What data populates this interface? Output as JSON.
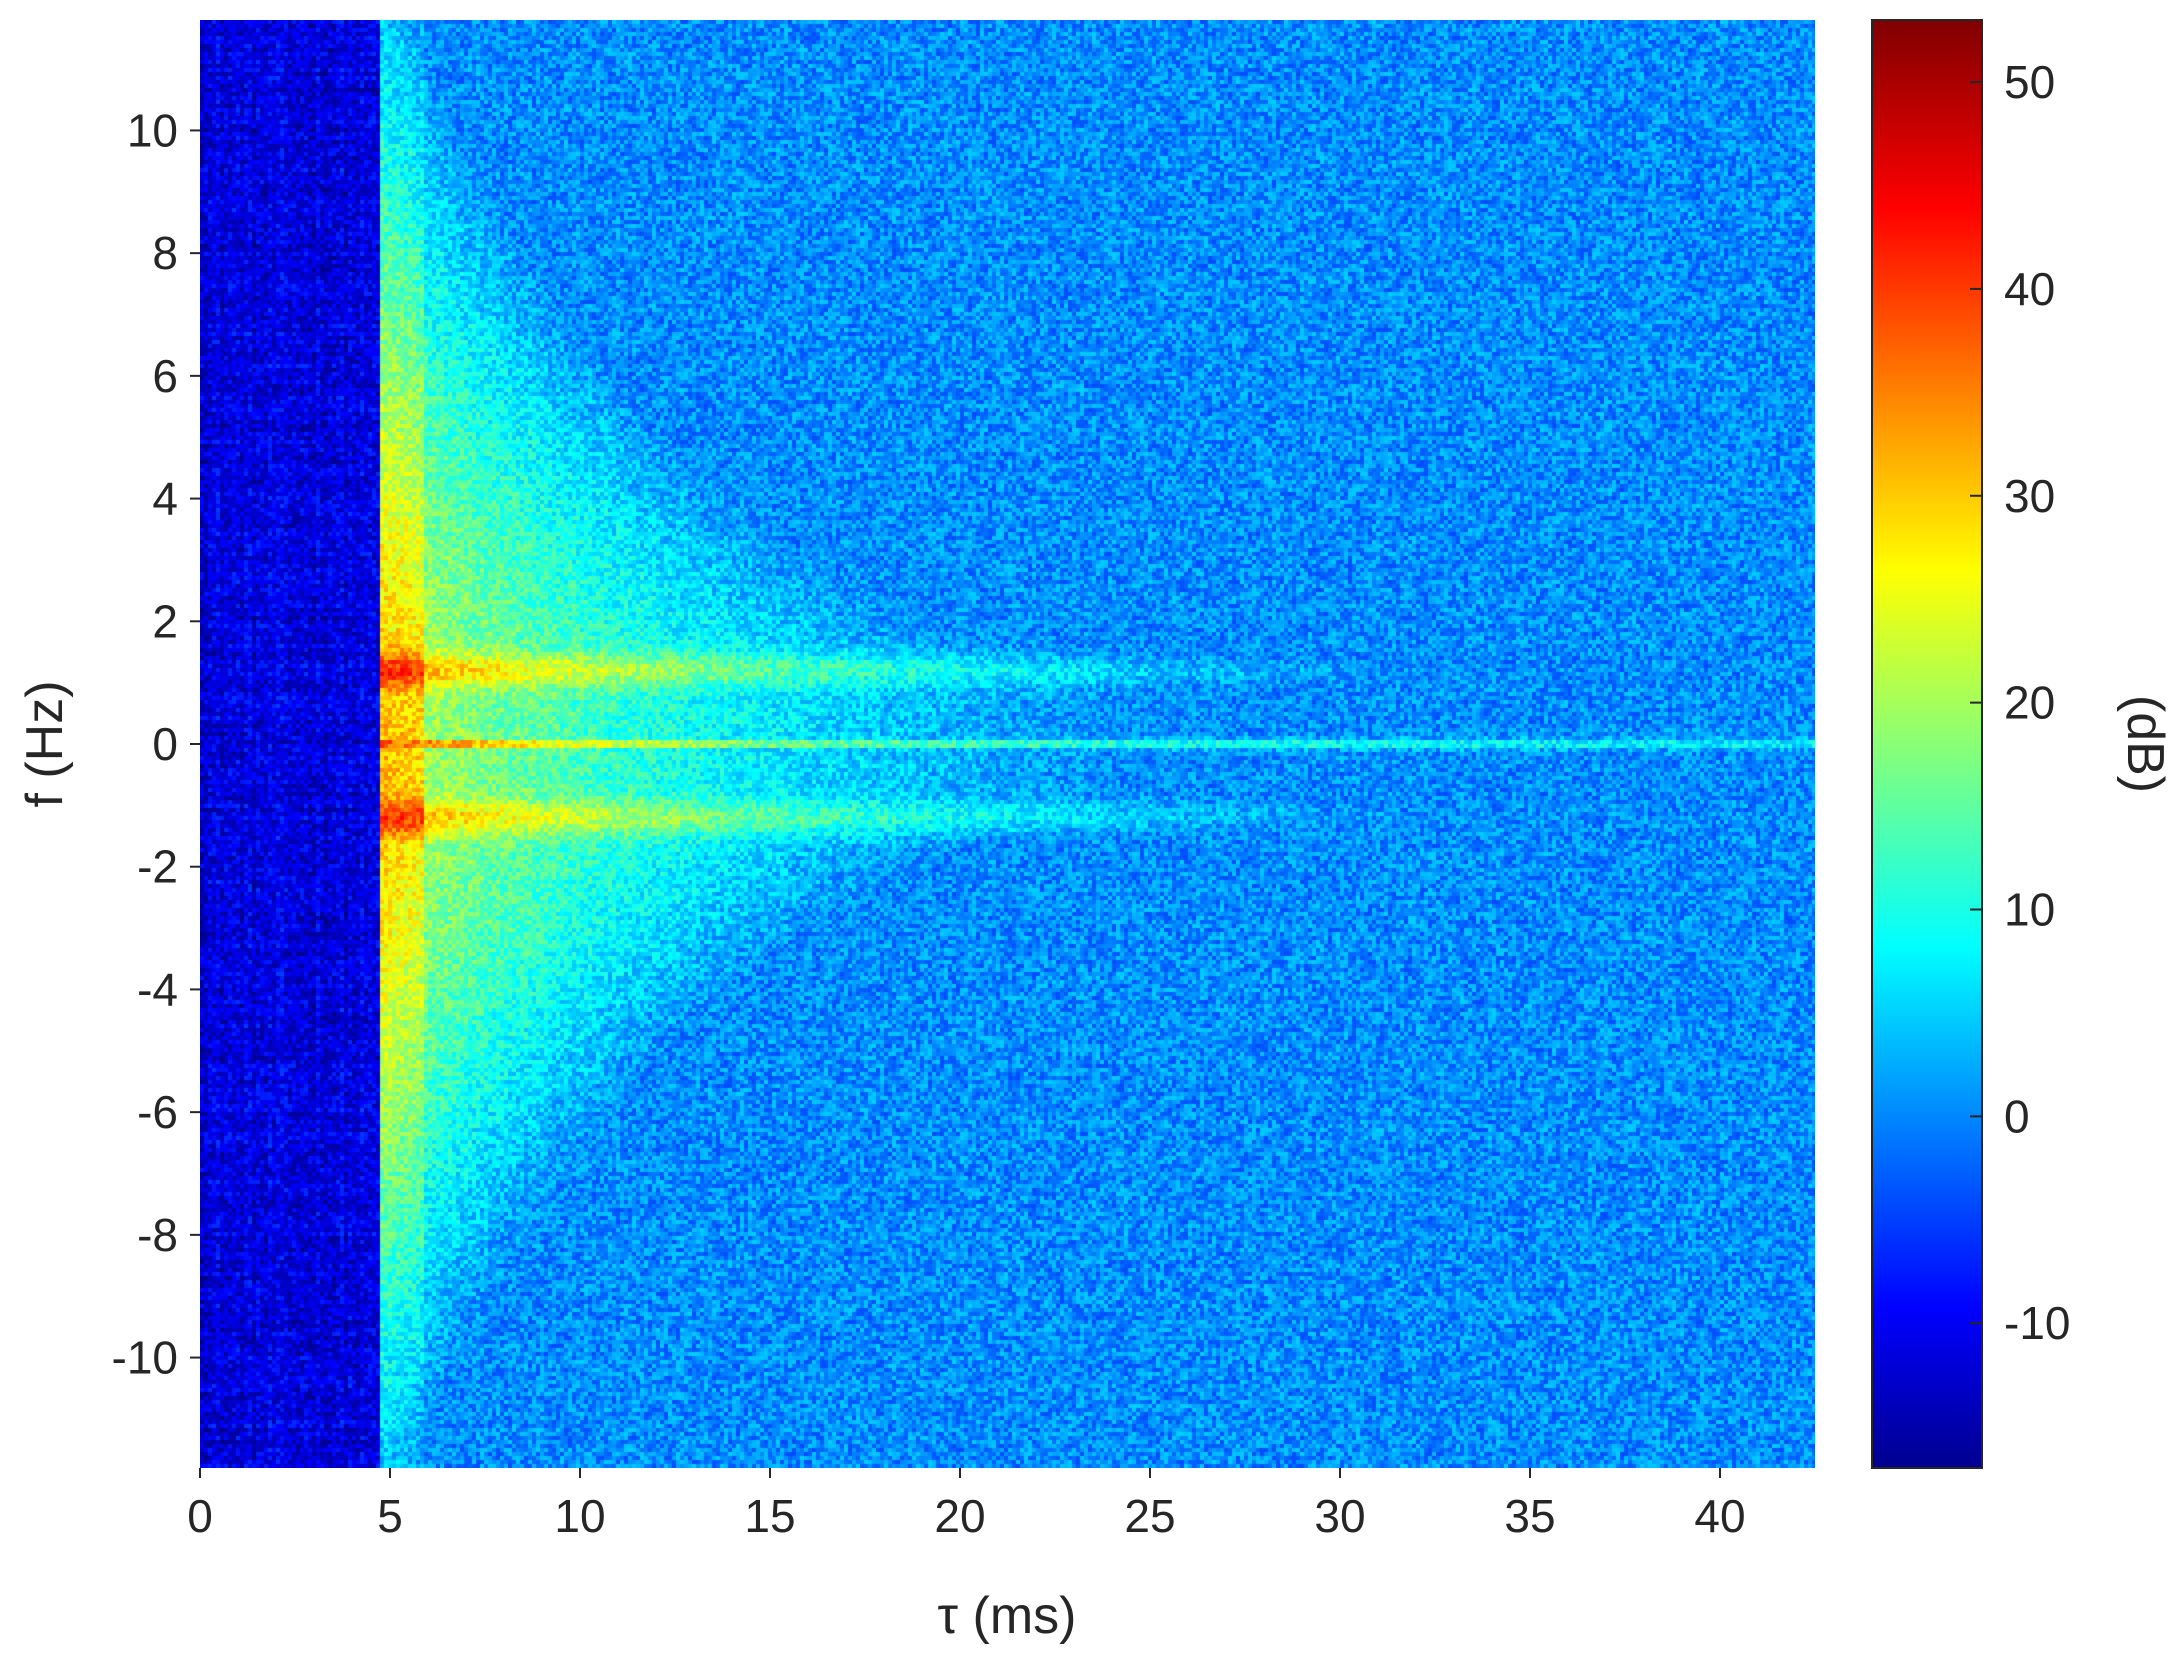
{
  "chart_data": {
    "type": "heatmap",
    "title": "",
    "xlabel": "τ (ms)",
    "ylabel": "f (Hz)",
    "colorbar_label": "(dB)",
    "colormap": "jet",
    "xlim": [
      0,
      42.5
    ],
    "ylim": [
      -11.8,
      11.8
    ],
    "clim": [
      -17,
      53
    ],
    "x_ticks": [
      0,
      5,
      10,
      15,
      20,
      25,
      30,
      35,
      40
    ],
    "x_tick_labels": [
      "0",
      "5",
      "10",
      "15",
      "20",
      "25",
      "30",
      "35",
      "40"
    ],
    "y_ticks": [
      10,
      8,
      6,
      4,
      2,
      0,
      -2,
      -4,
      -6,
      -8,
      -10
    ],
    "y_tick_labels": [
      "10",
      "8",
      "6",
      "4",
      "2",
      "0",
      "-2",
      "-4",
      "-6",
      "-8",
      "-10"
    ],
    "colorbar_ticks": [
      50,
      40,
      30,
      20,
      10,
      0,
      -10
    ],
    "colorbar_tick_labels": [
      "50",
      "40",
      "30",
      "20",
      "10",
      "0",
      "-10"
    ],
    "features": [
      {
        "description_key": "onset",
        "tau_ms": 5,
        "f_hz": 0,
        "level_db": 47
      },
      {
        "description_key": "zero_doppler_line",
        "f_hz": 0,
        "tau_range_ms": [
          4.5,
          42.5
        ],
        "level_db_range": [
          8,
          40
        ]
      },
      {
        "description_key": "doppler_sidebands",
        "f_hz": [
          1.2,
          -1.2
        ],
        "tau_range_ms": [
          4.5,
          42.5
        ],
        "level_db_range": [
          0,
          22
        ]
      },
      {
        "description_key": "background",
        "level_db": -13
      }
    ]
  }
}
